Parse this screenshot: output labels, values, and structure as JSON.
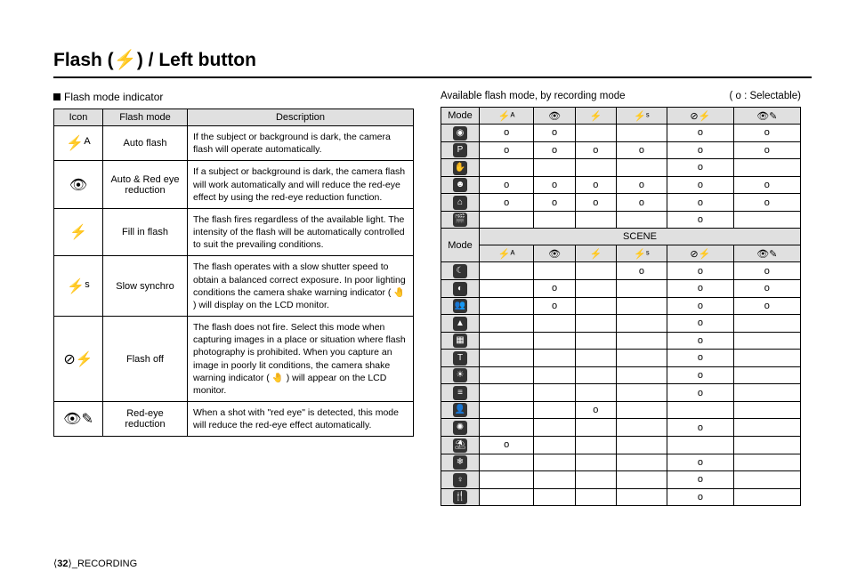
{
  "title_prefix": "Flash (",
  "title_icon": "⚡",
  "title_suffix": ") / Left button",
  "left": {
    "section_label": "Flash mode indicator",
    "headers": {
      "icon": "Icon",
      "mode": "Flash mode",
      "desc": "Description"
    },
    "rows": [
      {
        "icon": "⚡ᴬ",
        "mode": "Auto flash",
        "desc": "If the subject or background is dark, the camera flash will operate automatically."
      },
      {
        "icon": "👁",
        "mode": "Auto & Red eye reduction",
        "desc": "If a subject or background is dark, the camera flash will work automatically and will reduce the red-eye effect by using the red-eye reduction function."
      },
      {
        "icon": "⚡",
        "mode": "Fill in flash",
        "desc": "The flash fires regardless of the available light. The intensity of the flash will be automatically controlled to suit the prevailing conditions."
      },
      {
        "icon": "⚡ˢ",
        "mode": "Slow synchro",
        "desc": "The flash operates with a slow shutter speed to obtain a balanced correct exposure. In poor lighting conditions the camera shake warning indicator ( 🤚 ) will display on the LCD monitor."
      },
      {
        "icon": "⊘⚡",
        "mode": "Flash off",
        "desc": "The flash does not fire.\nSelect this mode when capturing images in a place or situation where flash photography is prohibited. When you capture an image in poorly lit conditions, the camera shake warning indicator ( 🤚 ) will appear on the LCD monitor."
      },
      {
        "icon": "👁✎",
        "mode": "Red-eye reduction",
        "desc": "When a shot with \"red eye\" is detected, this mode will reduce the red-eye effect automatically."
      }
    ]
  },
  "right": {
    "section_label": "Available flash mode, by recording mode",
    "legend": "( o : Selectable)",
    "mode_header": "Mode",
    "scene_label": "SCENE",
    "col_icons": [
      "⚡ᴬ",
      "👁",
      "⚡",
      "⚡ˢ",
      "⊘⚡",
      "👁✎"
    ],
    "rows1": [
      {
        "icon": "◉",
        "cells": [
          "o",
          "o",
          "",
          "",
          "o",
          "o"
        ]
      },
      {
        "icon": "P",
        "cells": [
          "o",
          "o",
          "o",
          "o",
          "o",
          "o"
        ]
      },
      {
        "icon": "✋",
        "cells": [
          "",
          "",
          "",
          "",
          "o",
          ""
        ]
      },
      {
        "icon": "☻",
        "cells": [
          "o",
          "o",
          "o",
          "o",
          "o",
          "o"
        ]
      },
      {
        "icon": "⌂",
        "cells": [
          "o",
          "o",
          "o",
          "o",
          "o",
          "o"
        ]
      },
      {
        "icon": "🎬",
        "cells": [
          "",
          "",
          "",
          "",
          "o",
          ""
        ]
      }
    ],
    "rows2": [
      {
        "icon": "☾",
        "cells": [
          "",
          "",
          "",
          "o",
          "o",
          "o"
        ]
      },
      {
        "icon": "◐",
        "cells": [
          "",
          "o",
          "",
          "",
          "o",
          "o"
        ]
      },
      {
        "icon": "👥",
        "cells": [
          "",
          "o",
          "",
          "",
          "o",
          "o"
        ]
      },
      {
        "icon": "▲",
        "cells": [
          "",
          "",
          "",
          "",
          "o",
          ""
        ]
      },
      {
        "icon": "▦",
        "cells": [
          "",
          "",
          "",
          "",
          "o",
          ""
        ]
      },
      {
        "icon": "T",
        "cells": [
          "",
          "",
          "",
          "",
          "o",
          ""
        ]
      },
      {
        "icon": "☀",
        "cells": [
          "",
          "",
          "",
          "",
          "o",
          ""
        ]
      },
      {
        "icon": "≡",
        "cells": [
          "",
          "",
          "",
          "",
          "o",
          ""
        ]
      },
      {
        "icon": "👤",
        "cells": [
          "",
          "",
          "o",
          "",
          "",
          ""
        ]
      },
      {
        "icon": "✺",
        "cells": [
          "",
          "",
          "",
          "",
          "o",
          ""
        ]
      },
      {
        "icon": "⛱",
        "cells": [
          "o",
          "",
          "",
          "",
          "",
          ""
        ]
      },
      {
        "icon": "❄",
        "cells": [
          "",
          "",
          "",
          "",
          "o",
          ""
        ]
      },
      {
        "icon": "♀",
        "cells": [
          "",
          "",
          "",
          "",
          "o",
          ""
        ]
      },
      {
        "icon": "🍴",
        "cells": [
          "",
          "",
          "",
          "",
          "o",
          ""
        ]
      }
    ]
  },
  "footer": {
    "page": "32",
    "section": "_RECORDING"
  }
}
